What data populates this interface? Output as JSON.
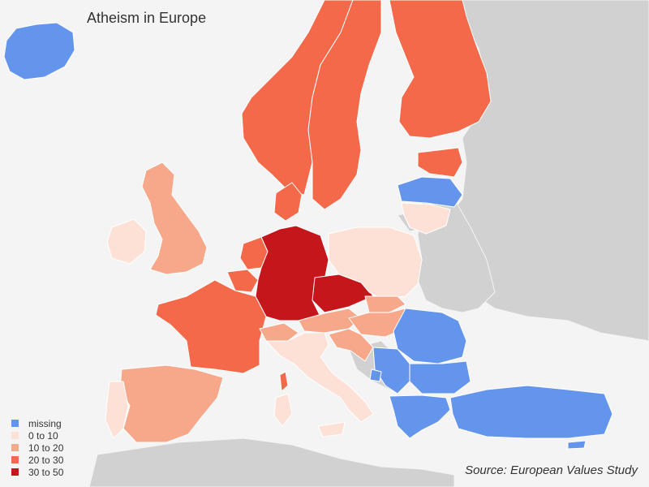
{
  "title": "Atheism in Europe",
  "source": "Source: European Values Study",
  "colors": {
    "missing": "#6495ed",
    "c0_10": "#fde0d6",
    "c10_20": "#f7a88a",
    "c20_30": "#f4694a",
    "c30_50": "#c5161c",
    "other_land": "#d1d1d1",
    "sea": "#f4f4f4"
  },
  "legend": [
    {
      "label": "missing",
      "color": "#6495ed"
    },
    {
      "label": "0 to 10",
      "color": "#fde0d6"
    },
    {
      "label": "10 to 20",
      "color": "#f7a88a"
    },
    {
      "label": "20 to 30",
      "color": "#f4694a"
    },
    {
      "label": "30 to 50",
      "color": "#c5161c"
    }
  ]
}
